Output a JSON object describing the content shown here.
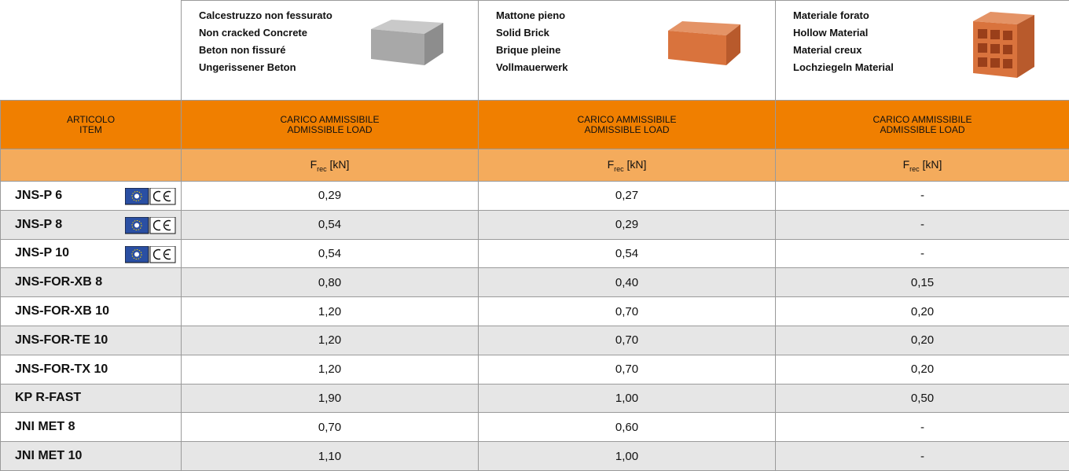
{
  "materials": [
    {
      "lines": [
        "Calcestruzzo non fessurato",
        "Non cracked Concrete",
        "Beton non fissuré",
        "Ungerissener Beton"
      ]
    },
    {
      "lines": [
        "Mattone pieno",
        "Solid Brick",
        "Brique pleine",
        "Vollmauerwerk"
      ]
    },
    {
      "lines": [
        "Materiale forato",
        "Hollow Material",
        "Material creux",
        "Lochziegeln Material"
      ]
    }
  ],
  "header": {
    "item": [
      "ARTICOLO",
      "ITEM"
    ],
    "load": [
      [
        "CARICO AMMISSIBILE",
        "ADMISSIBLE LOAD"
      ],
      [
        "CARICO AMMISSIBILE",
        "ADMISSIBLE LOAD"
      ],
      [
        "CARICO AMMISSIBILE",
        "ADMISSIBLE LOAD"
      ]
    ],
    "units": [
      {
        "symbol": "F",
        "subscript": "rec",
        "unit": "[kN]"
      },
      {
        "symbol": "F",
        "subscript": "rec",
        "unit": "[kN]"
      },
      {
        "symbol": "F",
        "subscript": "rec",
        "unit": "[kN]"
      }
    ]
  },
  "rows": [
    {
      "item": "JNS-P 6",
      "certified": true,
      "values": [
        "0,29",
        "0,27",
        "-"
      ]
    },
    {
      "item": "JNS-P 8",
      "certified": true,
      "values": [
        "0,54",
        "0,29",
        "-"
      ]
    },
    {
      "item": "JNS-P 10",
      "certified": true,
      "values": [
        "0,54",
        "0,54",
        "-"
      ]
    },
    {
      "item": "JNS-FOR-XB 8",
      "certified": false,
      "values": [
        "0,80",
        "0,40",
        "0,15"
      ]
    },
    {
      "item": "JNS-FOR-XB 10",
      "certified": false,
      "values": [
        "1,20",
        "0,70",
        "0,20"
      ]
    },
    {
      "item": "JNS-FOR-TE 10",
      "certified": false,
      "values": [
        "1,20",
        "0,70",
        "0,20"
      ]
    },
    {
      "item": "JNS-FOR-TX 10",
      "certified": false,
      "values": [
        "1,20",
        "0,70",
        "0,20"
      ]
    },
    {
      "item": "KP R-FAST",
      "certified": false,
      "values": [
        "1,90",
        "1,00",
        "0,50"
      ]
    },
    {
      "item": "JNI MET 8",
      "certified": false,
      "values": [
        "0,70",
        "0,60",
        "-"
      ]
    },
    {
      "item": "JNI MET 10",
      "certified": false,
      "values": [
        "1,10",
        "1,00",
        "-"
      ]
    }
  ]
}
